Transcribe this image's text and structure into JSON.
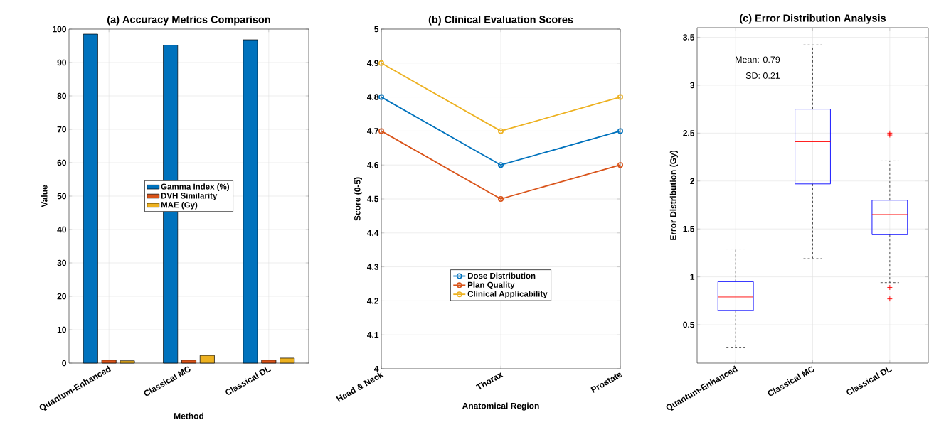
{
  "chart_data": [
    {
      "type": "bar",
      "title": "(a) Accuracy Metrics Comparison",
      "xlabel": "Method",
      "ylabel": "Value",
      "categories": [
        "Quantum-Enhanced",
        "Classical MC",
        "Classical DL"
      ],
      "series": [
        {
          "name": "Gamma Index (%)",
          "color": "#0072bd",
          "values": [
            98.5,
            95.2,
            96.8
          ]
        },
        {
          "name": "DVH Similarity",
          "color": "#d95319",
          "values": [
            0.9,
            0.9,
            0.9
          ]
        },
        {
          "name": "MAE (Gy)",
          "color": "#edb120",
          "values": [
            0.7,
            2.3,
            1.5
          ]
        }
      ],
      "ylim": [
        0,
        100
      ],
      "yticks": [
        0,
        10,
        20,
        30,
        40,
        50,
        60,
        70,
        80,
        90,
        100
      ],
      "grid": true,
      "legend": "center"
    },
    {
      "type": "line",
      "title": "(b) Clinical Evaluation Scores",
      "xlabel": "Anatomical Region",
      "ylabel": "Score (0-5)",
      "categories": [
        "Head & Neck",
        "Thorax",
        "Prostate"
      ],
      "series": [
        {
          "name": "Dose Distribution",
          "color": "#0072bd",
          "values": [
            4.8,
            4.6,
            4.7
          ]
        },
        {
          "name": "Plan Quality",
          "color": "#d95319",
          "values": [
            4.7,
            4.5,
            4.6
          ]
        },
        {
          "name": "Clinical Applicability",
          "color": "#edb120",
          "values": [
            4.9,
            4.7,
            4.8
          ]
        }
      ],
      "ylim": [
        4,
        5
      ],
      "yticks": [
        4,
        4.1,
        4.2,
        4.3,
        4.4,
        4.5,
        4.6,
        4.7,
        4.8,
        4.9,
        5
      ],
      "grid": true,
      "legend": "bottom",
      "marker": "circle",
      "line_style": "solid"
    },
    {
      "type": "box",
      "title": "(c) Error Distribution Analysis",
      "ylabel": "Error Distribution (Gy)",
      "categories": [
        "Quantum-Enhanced",
        "Classical MC",
        "Classical DL"
      ],
      "series": [
        {
          "color": "#0000ff",
          "boxes": [
            {
              "low": 0.26,
              "q1": 0.65,
              "median": 0.79,
              "q3": 0.95,
              "high": 1.29
            },
            {
              "low": 1.19,
              "q1": 1.97,
              "median": 2.41,
              "q3": 2.75,
              "high": 3.42
            },
            {
              "low": 0.94,
              "q1": 1.44,
              "median": 1.65,
              "q3": 1.8,
              "high": 2.21,
              "outliers": [
                2.48,
                2.5,
                0.89,
                0.77
              ]
            }
          ]
        }
      ],
      "ylim": [
        0.1,
        3.6
      ],
      "yticks": [
        0.5,
        1,
        1.5,
        2,
        2.5,
        3,
        3.5
      ],
      "grid": true,
      "annotations": [
        "Mean: 0.79",
        "SD: 0.21"
      ]
    }
  ]
}
